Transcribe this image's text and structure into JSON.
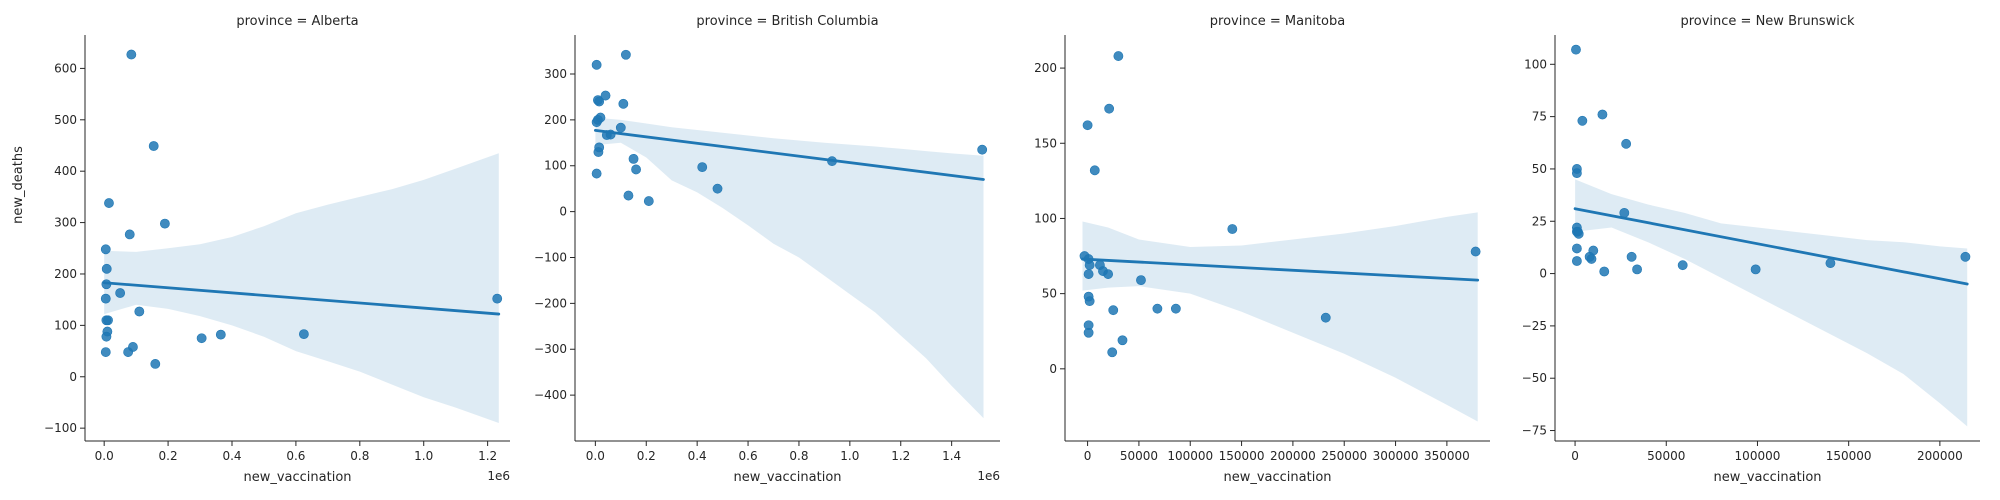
{
  "figure": {
    "shared_ylabel": "new_deaths"
  },
  "chart_data": [
    {
      "type": "scatter",
      "title": "province = Alberta",
      "xlabel": "new_vaccination",
      "x_offset_label": "1e6",
      "xlim": [
        -0.06,
        1.27
      ],
      "ylim": [
        -125,
        665
      ],
      "xticks": [
        0,
        0.2,
        0.4,
        0.6,
        0.8,
        1.0,
        1.2
      ],
      "xtick_labels": [
        "0.0",
        "0.2",
        "0.4",
        "0.6",
        "0.8",
        "1.0",
        "1.2"
      ],
      "yticks": [
        -100,
        0,
        100,
        200,
        300,
        400,
        500,
        600
      ],
      "ytick_labels": [
        "−100",
        "0",
        "100",
        "200",
        "300",
        "400",
        "500",
        "600"
      ],
      "points": [
        [
          0.085,
          627
        ],
        [
          0.155,
          449
        ],
        [
          0.015,
          338
        ],
        [
          0.19,
          298
        ],
        [
          0.08,
          277
        ],
        [
          0.005,
          248
        ],
        [
          0.008,
          210
        ],
        [
          0.007,
          180
        ],
        [
          0.05,
          163
        ],
        [
          0.005,
          152
        ],
        [
          0.11,
          127
        ],
        [
          0.007,
          110
        ],
        [
          0.012,
          110
        ],
        [
          0.01,
          88
        ],
        [
          0.007,
          78
        ],
        [
          0.09,
          58
        ],
        [
          0.075,
          48
        ],
        [
          0.005,
          48
        ],
        [
          0.16,
          25
        ],
        [
          0.305,
          75
        ],
        [
          0.365,
          82
        ],
        [
          0.625,
          83
        ],
        [
          1.23,
          152
        ]
      ],
      "regression": {
        "x": [
          0,
          1.235
        ],
        "y": [
          183,
          122
        ]
      },
      "ci_band": {
        "x": [
          0,
          0.1,
          0.2,
          0.3,
          0.4,
          0.5,
          0.6,
          0.7,
          0.8,
          0.9,
          1.0,
          1.1,
          1.235
        ],
        "upper": [
          245,
          243,
          250,
          258,
          272,
          293,
          318,
          335,
          350,
          365,
          383,
          405,
          435
        ],
        "lower": [
          122,
          140,
          132,
          118,
          100,
          78,
          50,
          30,
          10,
          -15,
          -40,
          -60,
          -90
        ]
      }
    },
    {
      "type": "scatter",
      "title": "province = British Columbia",
      "xlabel": "new_vaccination",
      "x_offset_label": "1e6",
      "xlim": [
        -0.08,
        1.59
      ],
      "ylim": [
        -500,
        385
      ],
      "xticks": [
        0,
        0.2,
        0.4,
        0.6,
        0.8,
        1.0,
        1.2,
        1.4
      ],
      "xtick_labels": [
        "0.0",
        "0.2",
        "0.4",
        "0.6",
        "0.8",
        "1.0",
        "1.2",
        "1.4"
      ],
      "yticks": [
        -400,
        -300,
        -200,
        -100,
        0,
        100,
        200,
        300
      ],
      "ytick_labels": [
        "−400",
        "−300",
        "−200",
        "−100",
        "0",
        "100",
        "200",
        "300"
      ],
      "points": [
        [
          0.005,
          320
        ],
        [
          0.12,
          342
        ],
        [
          0.04,
          253
        ],
        [
          0.11,
          235
        ],
        [
          0.01,
          243
        ],
        [
          0.015,
          240
        ],
        [
          0.02,
          205
        ],
        [
          0.01,
          200
        ],
        [
          0.005,
          195
        ],
        [
          0.1,
          183
        ],
        [
          0.045,
          167
        ],
        [
          0.06,
          168
        ],
        [
          0.015,
          140
        ],
        [
          0.012,
          130
        ],
        [
          0.15,
          115
        ],
        [
          0.16,
          92
        ],
        [
          0.005,
          83
        ],
        [
          0.42,
          97
        ],
        [
          0.13,
          35
        ],
        [
          0.21,
          23
        ],
        [
          0.48,
          50
        ],
        [
          0.93,
          110
        ],
        [
          1.52,
          135
        ]
      ],
      "regression": {
        "x": [
          0,
          1.525
        ],
        "y": [
          177,
          70
        ]
      },
      "ci_band": {
        "x": [
          0,
          0.1,
          0.2,
          0.3,
          0.4,
          0.5,
          0.6,
          0.7,
          0.8,
          0.9,
          1.0,
          1.1,
          1.2,
          1.3,
          1.4,
          1.525
        ],
        "upper": [
          205,
          200,
          192,
          184,
          178,
          172,
          166,
          160,
          155,
          150,
          146,
          142,
          137,
          132,
          127,
          122
        ],
        "lower": [
          145,
          150,
          118,
          68,
          42,
          8,
          -30,
          -70,
          -100,
          -140,
          -180,
          -220,
          -270,
          -320,
          -380,
          -450
        ]
      }
    },
    {
      "type": "scatter",
      "title": "province = Manitoba",
      "xlabel": "new_vaccination",
      "x_offset_label": "",
      "xlim": [
        -22000,
        392000
      ],
      "ylim": [
        -48,
        222
      ],
      "xticks": [
        0,
        50000,
        100000,
        150000,
        200000,
        250000,
        300000,
        350000
      ],
      "xtick_labels": [
        "0",
        "50000",
        "100000",
        "150000",
        "200000",
        "250000",
        "300000",
        "350000"
      ],
      "yticks": [
        0,
        50,
        100,
        150,
        200
      ],
      "ytick_labels": [
        "0",
        "50",
        "100",
        "150",
        "200"
      ],
      "points": [
        [
          30000,
          208
        ],
        [
          21000,
          173
        ],
        [
          0,
          162
        ],
        [
          7000,
          132
        ],
        [
          -3000,
          75
        ],
        [
          1000,
          73
        ],
        [
          2000,
          69
        ],
        [
          12000,
          69
        ],
        [
          15000,
          65
        ],
        [
          1000,
          63
        ],
        [
          20000,
          63
        ],
        [
          52000,
          59
        ],
        [
          1000,
          48
        ],
        [
          2000,
          45
        ],
        [
          25000,
          39
        ],
        [
          68000,
          40
        ],
        [
          86000,
          40
        ],
        [
          1000,
          29
        ],
        [
          1000,
          24
        ],
        [
          34000,
          19
        ],
        [
          24000,
          11
        ],
        [
          141000,
          93
        ],
        [
          232000,
          34
        ],
        [
          378000,
          78
        ]
      ],
      "regression": {
        "x": [
          -5000,
          380000
        ],
        "y": [
          73,
          59
        ]
      },
      "ci_band": {
        "x": [
          -5000,
          20000,
          50000,
          100000,
          150000,
          200000,
          250000,
          300000,
          350000,
          380000
        ],
        "upper": [
          98,
          94,
          86,
          81,
          82,
          86,
          90,
          95,
          101,
          104
        ],
        "lower": [
          52,
          54,
          55,
          50,
          38,
          24,
          10,
          -6,
          -24,
          -35
        ]
      }
    },
    {
      "type": "scatter",
      "title": "province = New Brunswick",
      "xlabel": "new_vaccination",
      "x_offset_label": "",
      "xlim": [
        -11000,
        222000
      ],
      "ylim": [
        -80,
        114
      ],
      "xticks": [
        0,
        50000,
        100000,
        150000,
        200000
      ],
      "xtick_labels": [
        "0",
        "50000",
        "100000",
        "150000",
        "200000"
      ],
      "yticks": [
        -75,
        -50,
        -25,
        0,
        25,
        50,
        75,
        100
      ],
      "ytick_labels": [
        "−75",
        "−50",
        "−25",
        "0",
        "25",
        "50",
        "75",
        "100"
      ],
      "points": [
        [
          500,
          107
        ],
        [
          15000,
          76
        ],
        [
          4000,
          73
        ],
        [
          28000,
          62
        ],
        [
          1000,
          50
        ],
        [
          1000,
          48
        ],
        [
          27000,
          29
        ],
        [
          1000,
          22
        ],
        [
          1000,
          20
        ],
        [
          1500,
          20
        ],
        [
          2000,
          19
        ],
        [
          1000,
          12
        ],
        [
          10000,
          11
        ],
        [
          8000,
          8
        ],
        [
          9000,
          7
        ],
        [
          31000,
          8
        ],
        [
          1000,
          6
        ],
        [
          16000,
          1
        ],
        [
          34000,
          2
        ],
        [
          59000,
          4
        ],
        [
          99000,
          2
        ],
        [
          140000,
          5
        ],
        [
          214000,
          8
        ]
      ],
      "regression": {
        "x": [
          0,
          215000
        ],
        "y": [
          31,
          -5
        ]
      },
      "ci_band": {
        "x": [
          0,
          20000,
          40000,
          60000,
          80000,
          100000,
          120000,
          140000,
          160000,
          180000,
          200000,
          215000
        ],
        "upper": [
          45,
          38,
          33,
          29,
          24,
          22,
          20,
          18,
          16,
          15,
          13,
          12
        ],
        "lower": [
          20,
          22,
          15,
          7,
          -2,
          -11,
          -20,
          -29,
          -38,
          -48,
          -62,
          -73
        ]
      }
    }
  ]
}
